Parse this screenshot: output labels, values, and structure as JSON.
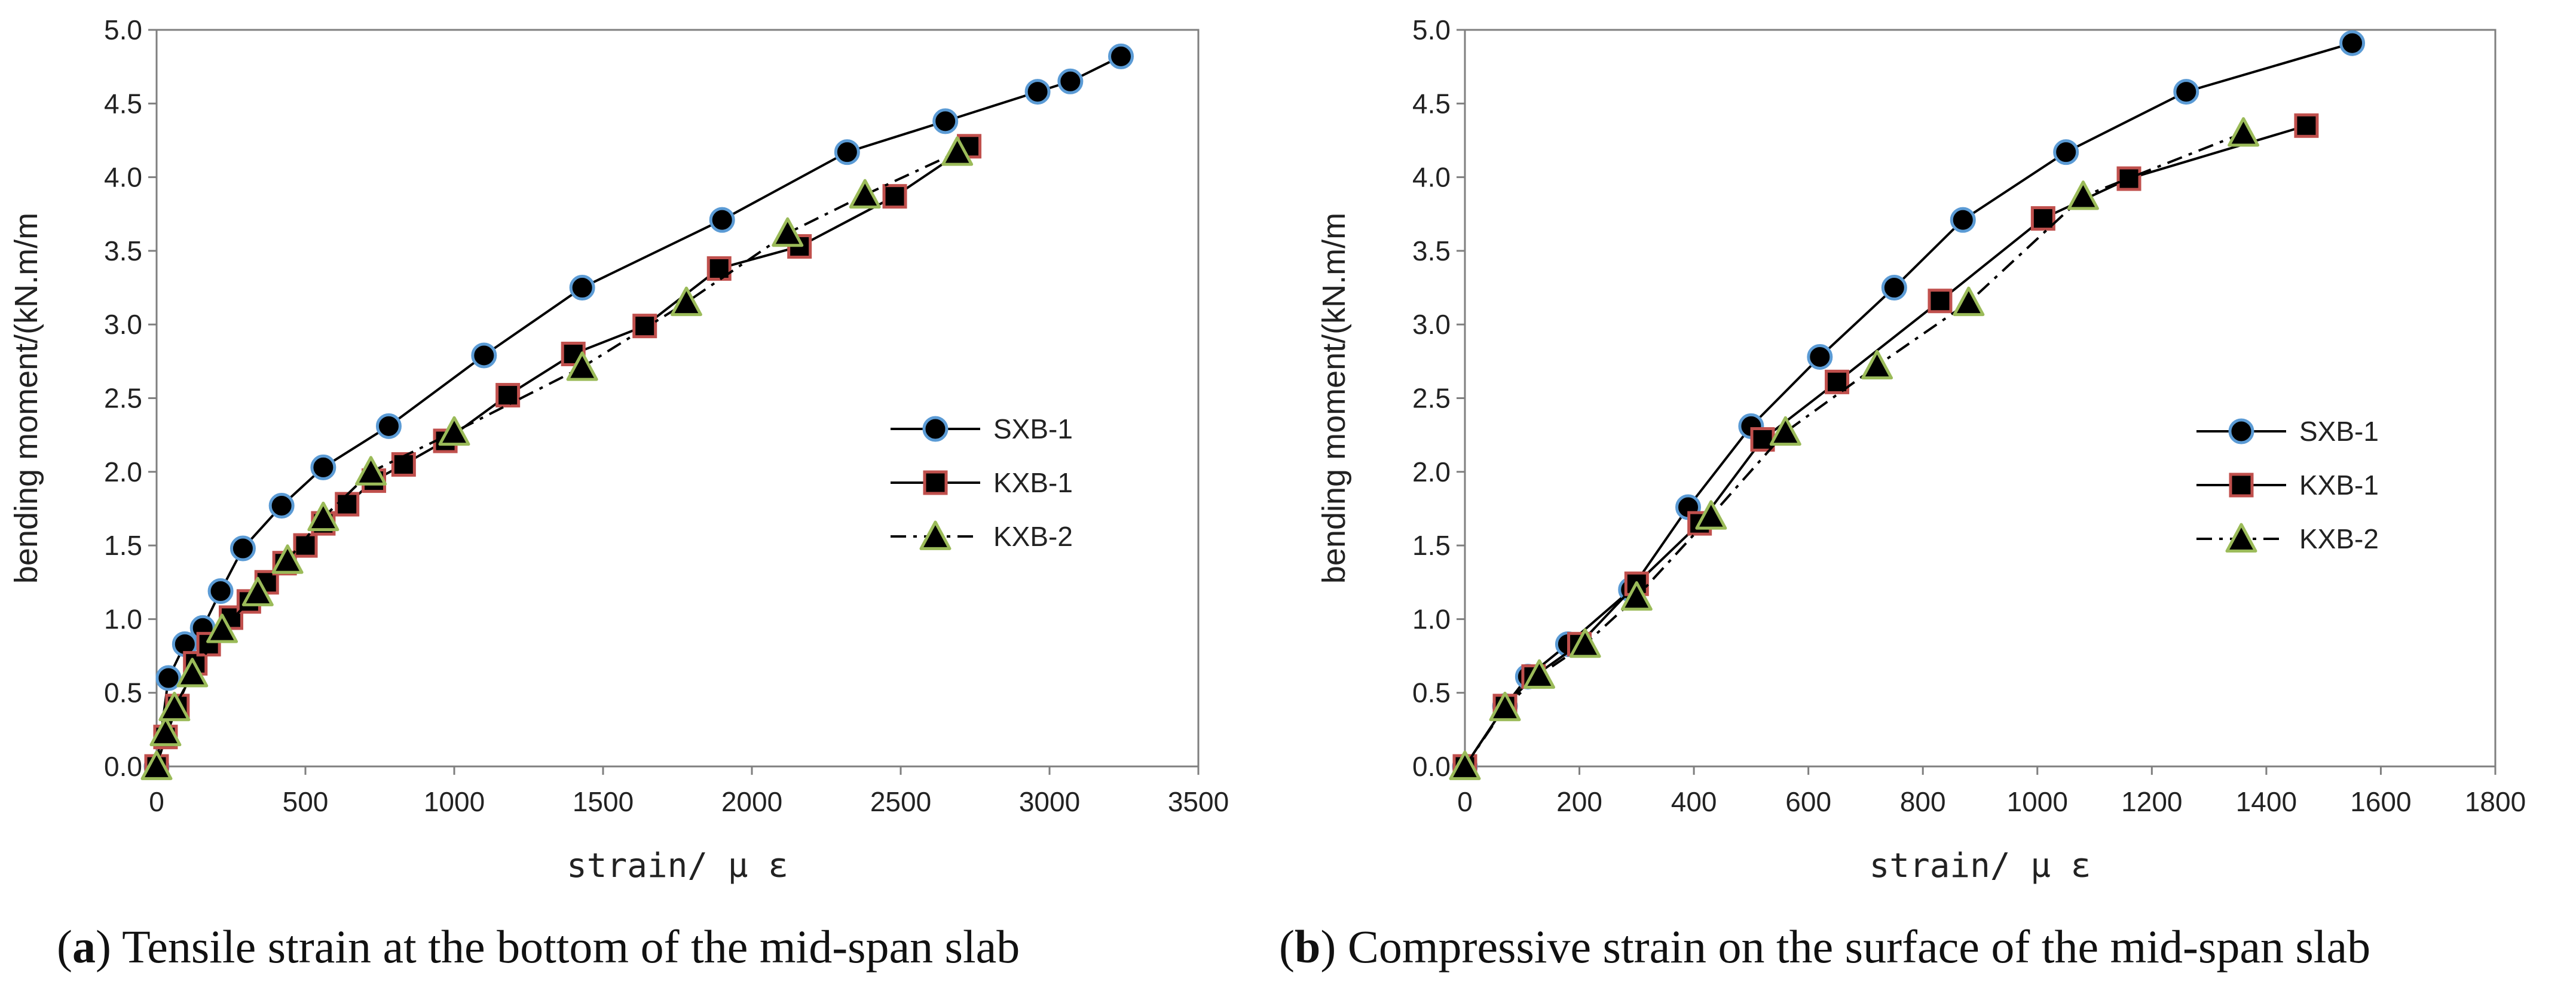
{
  "captions": [
    {
      "letter": "a",
      "text": "Tensile strain at the bottom of the mid-span slab"
    },
    {
      "letter": "b",
      "text": "Compressive strain on the surface of the mid-span slab"
    }
  ],
  "chart_data": [
    {
      "type": "line",
      "title": "",
      "caption": "(a) Tensile strain at the bottom of the mid-span slab",
      "xlabel": "strain/ μ ε",
      "ylabel": "bending moment/(kN.m/m",
      "xlim": [
        0,
        3500
      ],
      "ylim": [
        0,
        5.0
      ],
      "xticks": [
        "0",
        "500",
        "1000",
        "1500",
        "2000",
        "2500",
        "3000",
        "3500"
      ],
      "yticks": [
        "0.0",
        "0.5",
        "1.0",
        "1.5",
        "2.0",
        "2.5",
        "3.0",
        "3.5",
        "4.0",
        "4.5",
        "5.0"
      ],
      "grid": false,
      "legend_position": "center-right",
      "series": [
        {
          "name": "SXB-1",
          "marker": "circle",
          "line": "solid",
          "color": "#000000",
          "marker_edge": "#5b9bd5",
          "points": [
            [
              0,
              0
            ],
            [
              40,
              0.6
            ],
            [
              95,
              0.83
            ],
            [
              155,
              0.94
            ],
            [
              215,
              1.19
            ],
            [
              290,
              1.48
            ],
            [
              420,
              1.77
            ],
            [
              560,
              2.03
            ],
            [
              780,
              2.31
            ],
            [
              1100,
              2.79
            ],
            [
              1430,
              3.25
            ],
            [
              1900,
              3.71
            ],
            [
              2320,
              4.17
            ],
            [
              2650,
              4.38
            ],
            [
              2960,
              4.58
            ],
            [
              3070,
              4.65
            ],
            [
              3240,
              4.82
            ]
          ]
        },
        {
          "name": "KXB-1",
          "marker": "square",
          "line": "solid",
          "color": "#000000",
          "marker_edge": "#c0504d",
          "points": [
            [
              0,
              0
            ],
            [
              30,
              0.2
            ],
            [
              70,
              0.41
            ],
            [
              130,
              0.7
            ],
            [
              175,
              0.83
            ],
            [
              250,
              1.01
            ],
            [
              310,
              1.12
            ],
            [
              370,
              1.25
            ],
            [
              430,
              1.38
            ],
            [
              500,
              1.5
            ],
            [
              560,
              1.65
            ],
            [
              640,
              1.78
            ],
            [
              730,
              1.94
            ],
            [
              830,
              2.05
            ],
            [
              970,
              2.21
            ],
            [
              1180,
              2.52
            ],
            [
              1400,
              2.8
            ],
            [
              1640,
              2.99
            ],
            [
              1890,
              3.38
            ],
            [
              2160,
              3.53
            ],
            [
              2480,
              3.87
            ],
            [
              2730,
              4.21
            ]
          ]
        },
        {
          "name": "KXB-2",
          "marker": "triangle",
          "line": "dash-dot",
          "color": "#000000",
          "marker_edge": "#9bbb59",
          "points": [
            [
              0,
              0
            ],
            [
              30,
              0.23
            ],
            [
              60,
              0.4
            ],
            [
              120,
              0.63
            ],
            [
              220,
              0.93
            ],
            [
              340,
              1.18
            ],
            [
              440,
              1.4
            ],
            [
              560,
              1.69
            ],
            [
              720,
              2.0
            ],
            [
              1000,
              2.27
            ],
            [
              1430,
              2.71
            ],
            [
              1780,
              3.15
            ],
            [
              2120,
              3.62
            ],
            [
              2380,
              3.88
            ],
            [
              2690,
              4.17
            ]
          ]
        }
      ]
    },
    {
      "type": "line",
      "title": "",
      "caption": "(b) Compressive strain on the surface of the mid-span slab",
      "xlabel": "strain/ μ ε",
      "ylabel": "bending moment/(kN.m/m",
      "xlim": [
        0,
        1800
      ],
      "ylim": [
        0,
        5.0
      ],
      "xticks": [
        "0",
        "200",
        "400",
        "600",
        "800",
        "1000",
        "1200",
        "1400",
        "1600",
        "1800"
      ],
      "yticks": [
        "0.0",
        "0.5",
        "1.0",
        "1.5",
        "2.0",
        "2.5",
        "3.0",
        "3.5",
        "4.0",
        "4.5",
        "5.0"
      ],
      "grid": false,
      "legend_position": "center-right",
      "series": [
        {
          "name": "SXB-1",
          "marker": "circle",
          "line": "solid",
          "color": "#000000",
          "marker_edge": "#5b9bd5",
          "points": [
            [
              0,
              0
            ],
            [
              70,
              0.41
            ],
            [
              110,
              0.61
            ],
            [
              180,
              0.83
            ],
            [
              290,
              1.2
            ],
            [
              390,
              1.76
            ],
            [
              500,
              2.31
            ],
            [
              620,
              2.78
            ],
            [
              750,
              3.25
            ],
            [
              870,
              3.71
            ],
            [
              1050,
              4.17
            ],
            [
              1260,
              4.58
            ],
            [
              1550,
              4.91
            ]
          ]
        },
        {
          "name": "KXB-1",
          "marker": "square",
          "line": "solid",
          "color": "#000000",
          "marker_edge": "#c0504d",
          "points": [
            [
              0,
              0
            ],
            [
              70,
              0.41
            ],
            [
              120,
              0.61
            ],
            [
              200,
              0.83
            ],
            [
              300,
              1.24
            ],
            [
              410,
              1.65
            ],
            [
              520,
              2.22
            ],
            [
              650,
              2.61
            ],
            [
              830,
              3.16
            ],
            [
              1010,
              3.72
            ],
            [
              1160,
              3.99
            ],
            [
              1470,
              4.35
            ]
          ]
        },
        {
          "name": "KXB-2",
          "marker": "triangle",
          "line": "dash-dot",
          "color": "#000000",
          "marker_edge": "#9bbb59",
          "points": [
            [
              0,
              0
            ],
            [
              70,
              0.4
            ],
            [
              130,
              0.62
            ],
            [
              210,
              0.83
            ],
            [
              300,
              1.15
            ],
            [
              430,
              1.7
            ],
            [
              560,
              2.27
            ],
            [
              720,
              2.72
            ],
            [
              880,
              3.15
            ],
            [
              1080,
              3.87
            ],
            [
              1360,
              4.3
            ]
          ]
        }
      ]
    }
  ]
}
